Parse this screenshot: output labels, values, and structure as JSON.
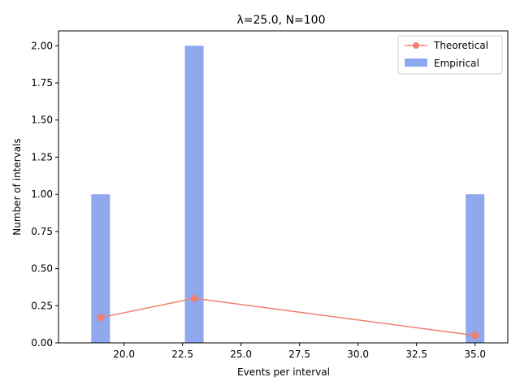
{
  "chart_data": {
    "type": "bar",
    "title": "λ=25.0, N=100",
    "xlabel": "Events per interval",
    "ylabel": "Number of intervals",
    "xlim": [
      17.2,
      36.4
    ],
    "ylim": [
      0,
      2.1
    ],
    "x_ticks": [
      20.0,
      22.5,
      25.0,
      27.5,
      30.0,
      32.5,
      35.0
    ],
    "x_tick_labels": [
      "20.0",
      "22.5",
      "25.0",
      "27.5",
      "30.0",
      "32.5",
      "35.0"
    ],
    "y_ticks": [
      0,
      0.25,
      0.5,
      0.75,
      1.0,
      1.25,
      1.5,
      1.75,
      2.0
    ],
    "y_tick_labels": [
      "0.00",
      "0.25",
      "0.50",
      "0.75",
      "1.00",
      "1.25",
      "1.50",
      "1.75",
      "2.00"
    ],
    "bar_width": 0.8,
    "series": [
      {
        "name": "Empirical",
        "kind": "bar",
        "color": "#8fa8ee",
        "x": [
          19,
          23,
          35
        ],
        "values": [
          1,
          2,
          1
        ]
      },
      {
        "name": "Theoretical",
        "kind": "line",
        "marker": "circle",
        "color": "#f08070",
        "x": [
          19,
          23,
          35
        ],
        "values": [
          0.17,
          0.3,
          0.05
        ]
      }
    ],
    "legend": {
      "placement": "top-right",
      "entries": [
        "Theoretical",
        "Empirical"
      ]
    },
    "grid": false
  }
}
